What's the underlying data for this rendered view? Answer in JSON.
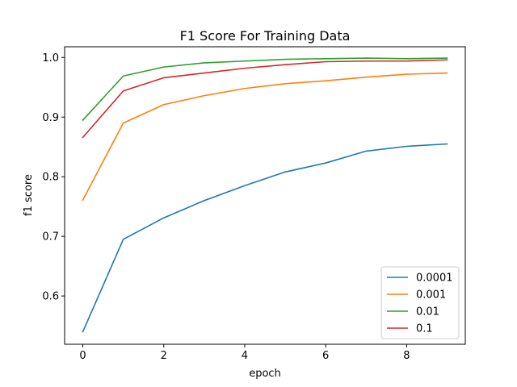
{
  "chart_data": {
    "type": "line",
    "title": "F1 Score For Training Data",
    "xlabel": "epoch",
    "ylabel": "f1 score",
    "xlim": [
      -0.45,
      9.45
    ],
    "ylim": [
      0.519,
      1.018
    ],
    "xticks": [
      0,
      2,
      4,
      6,
      8
    ],
    "yticks": [
      0.6,
      0.7,
      0.8,
      0.9,
      1.0
    ],
    "xtick_labels": [
      "0",
      "2",
      "4",
      "6",
      "8"
    ],
    "ytick_labels": [
      "0.6",
      "0.7",
      "0.8",
      "0.9",
      "1.0"
    ],
    "grid": false,
    "legend_position": "lower-right",
    "x": [
      0,
      1,
      2,
      3,
      4,
      5,
      6,
      7,
      8,
      9
    ],
    "series": [
      {
        "name": "0.0001",
        "color": "#1f77b4",
        "values": [
          0.54,
          0.695,
          0.731,
          0.76,
          0.785,
          0.808,
          0.823,
          0.843,
          0.851,
          0.855
        ]
      },
      {
        "name": "0.001",
        "color": "#ff7f0e",
        "values": [
          0.761,
          0.89,
          0.921,
          0.936,
          0.948,
          0.956,
          0.961,
          0.967,
          0.972,
          0.974
        ]
      },
      {
        "name": "0.01",
        "color": "#2ca02c",
        "values": [
          0.895,
          0.969,
          0.984,
          0.991,
          0.994,
          0.997,
          0.998,
          0.999,
          0.998,
          0.999
        ]
      },
      {
        "name": "0.1",
        "color": "#d62728",
        "values": [
          0.866,
          0.944,
          0.966,
          0.974,
          0.982,
          0.988,
          0.993,
          0.994,
          0.994,
          0.996
        ]
      }
    ]
  }
}
